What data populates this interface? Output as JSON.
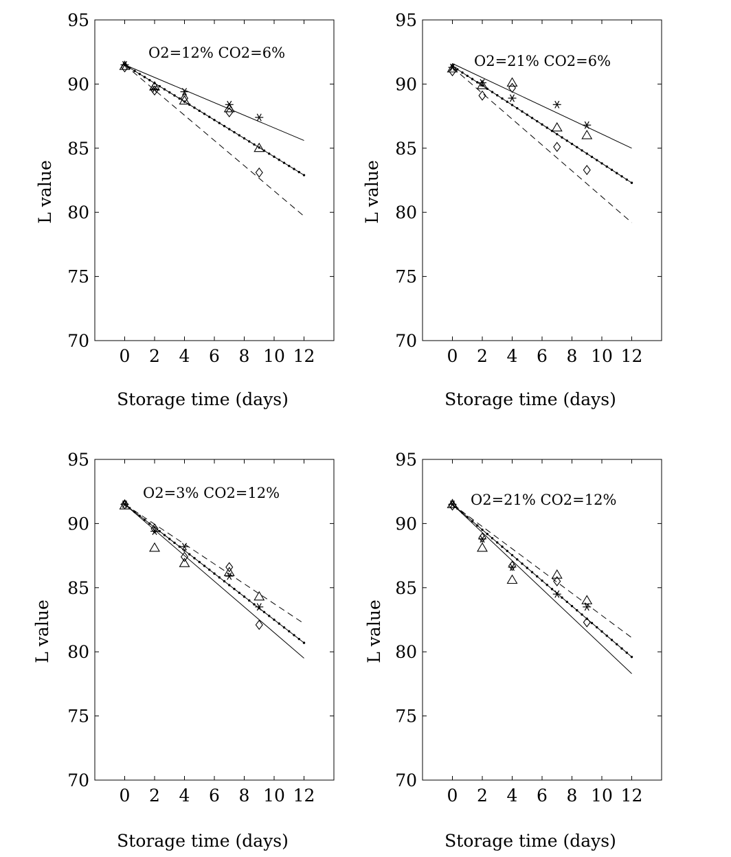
{
  "chart_data": [
    {
      "type": "line",
      "annotation": "O2=12% CO2=6%",
      "xlabel": "Storage time (days)",
      "ylabel": "L value",
      "xlim": [
        -2,
        14
      ],
      "ylim": [
        70,
        95
      ],
      "xticks": [
        0,
        2,
        4,
        6,
        8,
        10,
        12
      ],
      "yticks": [
        70,
        75,
        80,
        85,
        90,
        95
      ],
      "grid": false,
      "legend": "none",
      "markers": {
        "star": [
          [
            0,
            91.5
          ],
          [
            2,
            89.6
          ],
          [
            4,
            89.4
          ],
          [
            7,
            88.4
          ],
          [
            9,
            87.4
          ]
        ],
        "triangle": [
          [
            0,
            91.4
          ],
          [
            2,
            89.8
          ],
          [
            4,
            88.7
          ],
          [
            7,
            88.1
          ],
          [
            9,
            85.0
          ]
        ],
        "diamond": [
          [
            0,
            91.3
          ],
          [
            2,
            89.5
          ],
          [
            4,
            88.9
          ],
          [
            7,
            87.8
          ],
          [
            9,
            83.1
          ]
        ]
      },
      "fit_lines": [
        {
          "style": "solid",
          "x": [
            0,
            12
          ],
          "y": [
            91.5,
            85.6
          ]
        },
        {
          "style": "dotted",
          "x": [
            0,
            12
          ],
          "y": [
            91.5,
            82.9
          ]
        },
        {
          "style": "dashed",
          "x": [
            0,
            12
          ],
          "y": [
            91.5,
            79.7
          ]
        }
      ]
    },
    {
      "type": "line",
      "annotation": "O2=21% CO2=6%",
      "xlabel": "Storage time (days)",
      "ylabel": "L value",
      "xlim": [
        -2,
        14
      ],
      "ylim": [
        70,
        95
      ],
      "xticks": [
        0,
        2,
        4,
        6,
        8,
        10,
        12
      ],
      "yticks": [
        70,
        75,
        80,
        85,
        90,
        95
      ],
      "grid": false,
      "legend": "none",
      "markers": {
        "star": [
          [
            0,
            91.3
          ],
          [
            2,
            90.1
          ],
          [
            4,
            88.9
          ],
          [
            7,
            88.4
          ],
          [
            9,
            86.8
          ]
        ],
        "triangle": [
          [
            0,
            91.2
          ],
          [
            2,
            89.9
          ],
          [
            4,
            90.1
          ],
          [
            7,
            86.6
          ],
          [
            9,
            86.0
          ]
        ],
        "diamond": [
          [
            0,
            91.0
          ],
          [
            2,
            89.1
          ],
          [
            4,
            89.7
          ],
          [
            7,
            85.1
          ],
          [
            9,
            83.3
          ]
        ]
      },
      "fit_lines": [
        {
          "style": "solid",
          "x": [
            0,
            12
          ],
          "y": [
            91.6,
            85.0
          ]
        },
        {
          "style": "dotted",
          "x": [
            0,
            12
          ],
          "y": [
            91.4,
            82.3
          ]
        },
        {
          "style": "dashed",
          "x": [
            0,
            12
          ],
          "y": [
            91.3,
            79.2
          ]
        }
      ]
    },
    {
      "type": "line",
      "annotation": "O2=3% CO2=12%",
      "xlabel": "Storage time (days)",
      "ylabel": "L value",
      "xlim": [
        -2,
        14
      ],
      "ylim": [
        70,
        95
      ],
      "xticks": [
        0,
        2,
        4,
        6,
        8,
        10,
        12
      ],
      "yticks": [
        70,
        75,
        80,
        85,
        90,
        95
      ],
      "grid": false,
      "legend": "none",
      "markers": {
        "star": [
          [
            0,
            91.5
          ],
          [
            2,
            89.4
          ],
          [
            4,
            88.2
          ],
          [
            7,
            85.9
          ],
          [
            9,
            83.5
          ]
        ],
        "triangle": [
          [
            0,
            91.4
          ],
          [
            2,
            88.1
          ],
          [
            4,
            86.9
          ],
          [
            7,
            86.2
          ],
          [
            9,
            84.3
          ]
        ],
        "diamond": [
          [
            0,
            91.5
          ],
          [
            2,
            89.6
          ],
          [
            4,
            87.4
          ],
          [
            7,
            86.6
          ],
          [
            9,
            82.1
          ]
        ]
      },
      "fit_lines": [
        {
          "style": "solid",
          "x": [
            0,
            12
          ],
          "y": [
            91.5,
            79.5
          ]
        },
        {
          "style": "dotted",
          "x": [
            0,
            12
          ],
          "y": [
            91.5,
            80.7
          ]
        },
        {
          "style": "dashed",
          "x": [
            0,
            12
          ],
          "y": [
            91.5,
            82.2
          ]
        }
      ]
    },
    {
      "type": "line",
      "annotation": "O2=21% CO2=12%",
      "xlabel": "Storage time (days)",
      "ylabel": "L value",
      "xlim": [
        -2,
        14
      ],
      "ylim": [
        70,
        95
      ],
      "xticks": [
        0,
        2,
        4,
        6,
        8,
        10,
        12
      ],
      "yticks": [
        70,
        75,
        80,
        85,
        90,
        95
      ],
      "grid": false,
      "legend": "none",
      "markers": {
        "star": [
          [
            0,
            91.5
          ],
          [
            2,
            88.8
          ],
          [
            4,
            86.6
          ],
          [
            7,
            84.5
          ],
          [
            9,
            83.5
          ]
        ],
        "triangle": [
          [
            0,
            91.5
          ],
          [
            2,
            88.1
          ],
          [
            4,
            85.6
          ],
          [
            7,
            86.0
          ],
          [
            9,
            84.0
          ]
        ],
        "diamond": [
          [
            0,
            91.4
          ],
          [
            2,
            88.9
          ],
          [
            4,
            86.7
          ],
          [
            7,
            85.5
          ],
          [
            9,
            82.3
          ]
        ]
      },
      "fit_lines": [
        {
          "style": "solid",
          "x": [
            0,
            12
          ],
          "y": [
            91.5,
            78.3
          ]
        },
        {
          "style": "dotted",
          "x": [
            0,
            12
          ],
          "y": [
            91.5,
            79.6
          ]
        },
        {
          "style": "dashed",
          "x": [
            0,
            12
          ],
          "y": [
            91.5,
            81.1
          ]
        }
      ]
    }
  ]
}
